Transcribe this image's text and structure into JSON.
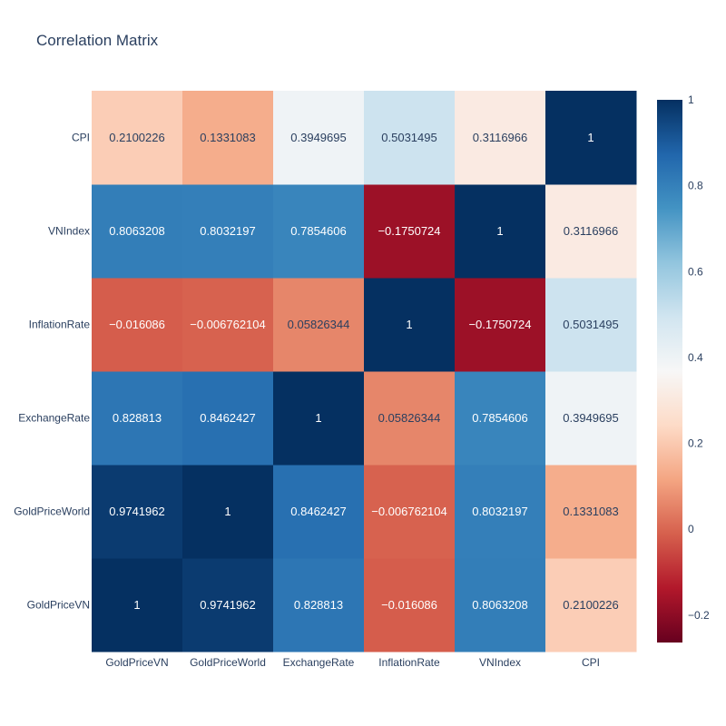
{
  "chart_data": {
    "type": "heatmap",
    "title": "Correlation Matrix",
    "x_labels": [
      "GoldPriceVN",
      "GoldPriceWorld",
      "ExchangeRate",
      "InflationRate",
      "VNIndex",
      "CPI"
    ],
    "y_labels": [
      "GoldPriceVN",
      "GoldPriceWorld",
      "ExchangeRate",
      "InflationRate",
      "VNIndex",
      "CPI"
    ],
    "values": [
      [
        1,
        0.9741962,
        0.828813,
        -0.016086,
        0.8063208,
        0.2100226
      ],
      [
        0.9741962,
        1,
        0.8462427,
        -0.006762104,
        0.8032197,
        0.1331083
      ],
      [
        0.828813,
        0.8462427,
        1,
        0.05826344,
        0.7854606,
        0.3949695
      ],
      [
        -0.016086,
        -0.006762104,
        0.05826344,
        1,
        -0.1750724,
        0.5031495
      ],
      [
        0.8063208,
        0.8032197,
        0.7854606,
        -0.1750724,
        1,
        0.3116966
      ],
      [
        0.2100226,
        0.1331083,
        0.3949695,
        0.5031495,
        0.3116966,
        1
      ]
    ],
    "value_labels": [
      [
        "1",
        "0.9741962",
        "0.828813",
        "−0.016086",
        "0.8063208",
        "0.2100226"
      ],
      [
        "0.9741962",
        "1",
        "0.8462427",
        "−0.006762104",
        "0.8032197",
        "0.1331083"
      ],
      [
        "0.828813",
        "0.8462427",
        "1",
        "0.05826344",
        "0.7854606",
        "0.3949695"
      ],
      [
        "−0.016086",
        "−0.006762104",
        "0.05826344",
        "1",
        "−0.1750724",
        "0.5031495"
      ],
      [
        "0.8063208",
        "0.8032197",
        "0.7854606",
        "−0.1750724",
        "1",
        "0.3116966"
      ],
      [
        "0.2100226",
        "0.1331083",
        "0.3949695",
        "0.5031495",
        "0.3116966",
        "1"
      ]
    ],
    "zmin": -0.2637,
    "zmax": 1,
    "colorscale": "RdBu",
    "colorbar_ticks": [
      {
        "value": 1,
        "label": "1"
      },
      {
        "value": 0.8,
        "label": "0.8"
      },
      {
        "value": 0.6,
        "label": "0.6"
      },
      {
        "value": 0.4,
        "label": "0.4"
      },
      {
        "value": 0.2,
        "label": "0.2"
      },
      {
        "value": 0,
        "label": "0"
      },
      {
        "value": -0.2,
        "label": "−0.2"
      }
    ]
  }
}
